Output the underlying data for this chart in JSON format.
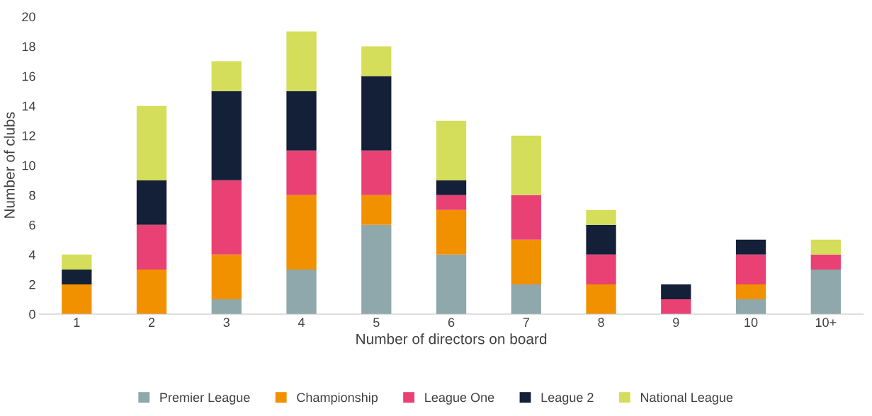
{
  "chart_data": {
    "type": "bar",
    "stacked": true,
    "xlabel": "Number of directors on board",
    "ylabel": "Number of clubs",
    "categories": [
      "1",
      "2",
      "3",
      "4",
      "5",
      "6",
      "7",
      "8",
      "9",
      "10",
      "10+"
    ],
    "series": [
      {
        "name": "Premier League",
        "color": "#8fa8ab",
        "values": [
          0,
          0,
          1,
          3,
          6,
          4,
          2,
          0,
          0,
          1,
          3
        ]
      },
      {
        "name": "Championship",
        "color": "#f29100",
        "values": [
          2,
          3,
          3,
          5,
          2,
          3,
          3,
          2,
          0,
          1,
          0
        ]
      },
      {
        "name": "League One",
        "color": "#e94174",
        "values": [
          0,
          3,
          5,
          3,
          3,
          1,
          3,
          2,
          1,
          2,
          1
        ]
      },
      {
        "name": "League 2",
        "color": "#141f38",
        "values": [
          1,
          3,
          6,
          4,
          5,
          1,
          0,
          2,
          1,
          1,
          0
        ]
      },
      {
        "name": "National League",
        "color": "#d4de5a",
        "values": [
          1,
          5,
          2,
          4,
          2,
          4,
          4,
          1,
          0,
          0,
          1
        ]
      }
    ],
    "ylim": [
      0,
      20
    ],
    "yticks": [
      0,
      2,
      4,
      6,
      8,
      10,
      12,
      14,
      16,
      18,
      20
    ],
    "grid": false,
    "legend": "bottom"
  }
}
